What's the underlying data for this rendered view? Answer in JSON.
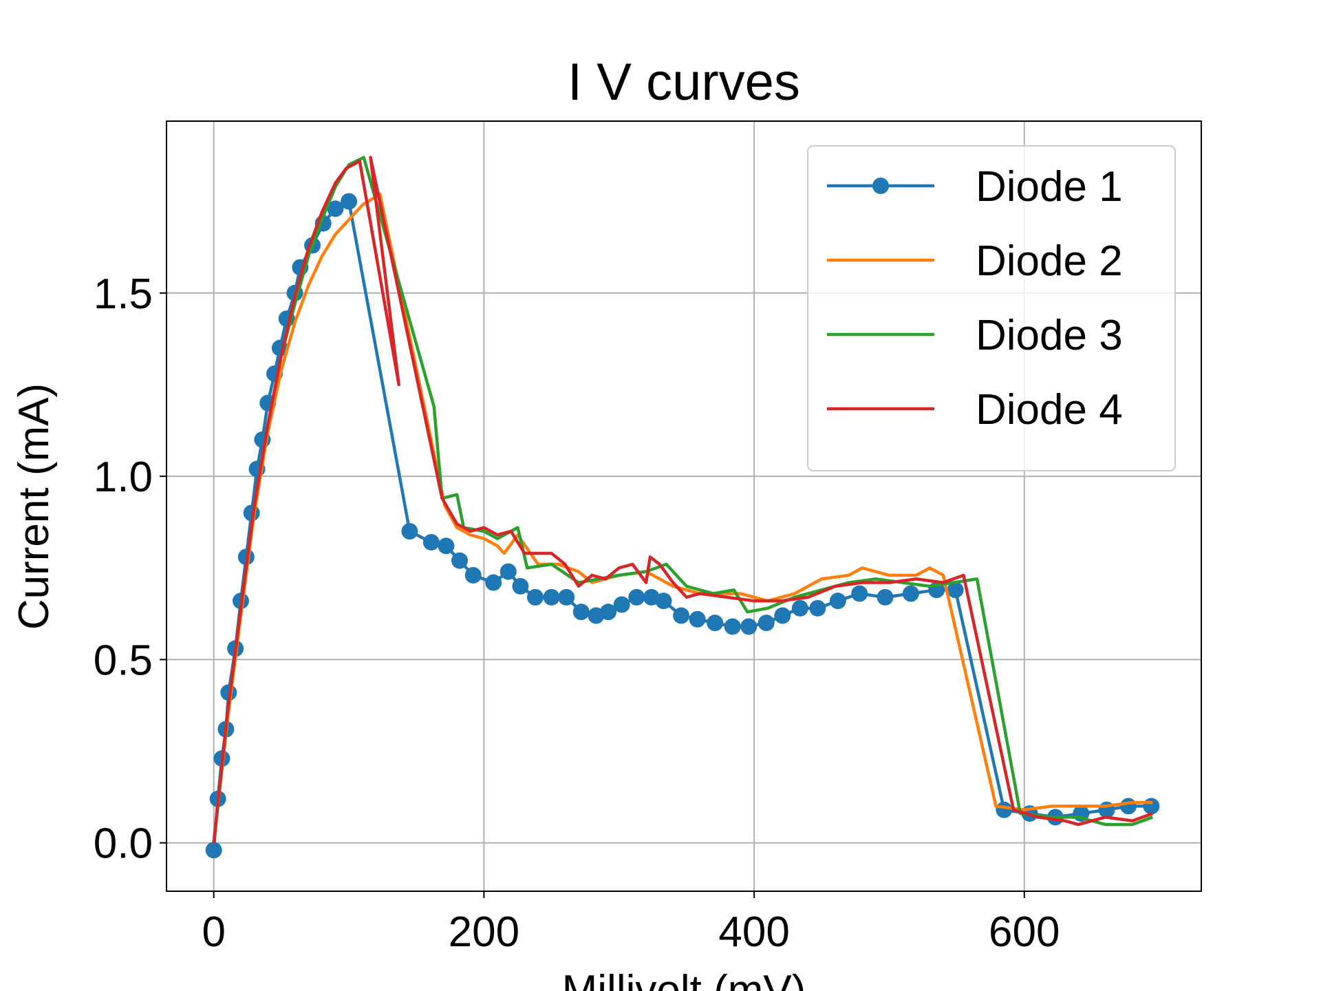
{
  "chart_data": {
    "type": "line",
    "title": "I V curves",
    "x_label": "Millivolt (mV)",
    "y_label": "Current (mA)",
    "xlim": [
      -35,
      731
    ],
    "ylim": [
      -0.132,
      1.969
    ],
    "xticks": [
      0,
      200,
      400,
      600
    ],
    "yticks": [
      {
        "value": 0,
        "label": "0.0"
      },
      0.5,
      {
        "value": 1,
        "label": "1.0"
      },
      1.5
    ],
    "grid": true,
    "legend": "upper right",
    "series": [
      {
        "name": "Diode 1",
        "color": "#1f77b4",
        "marker": "o",
        "x": [
          0,
          3,
          6,
          9,
          11,
          16,
          20,
          24,
          28,
          32,
          36,
          40,
          45,
          49,
          54,
          60,
          64,
          73,
          81,
          90,
          100,
          145,
          161,
          172,
          182,
          192,
          207,
          218,
          227,
          238,
          250,
          261,
          272,
          283,
          292,
          302,
          313,
          324,
          333,
          346,
          358,
          371,
          384,
          396,
          409,
          421,
          434,
          447,
          462,
          478,
          497,
          516,
          535,
          549,
          585,
          604,
          623,
          642,
          661,
          677,
          694
        ],
        "values": [
          -0.02,
          0.12,
          0.23,
          0.31,
          0.41,
          0.53,
          0.66,
          0.78,
          0.9,
          1.02,
          1.1,
          1.2,
          1.28,
          1.35,
          1.43,
          1.5,
          1.57,
          1.63,
          1.69,
          1.73,
          1.75,
          0.85,
          0.82,
          0.81,
          0.77,
          0.73,
          0.71,
          0.74,
          0.7,
          0.67,
          0.67,
          0.67,
          0.63,
          0.62,
          0.63,
          0.65,
          0.67,
          0.67,
          0.66,
          0.62,
          0.61,
          0.6,
          0.59,
          0.59,
          0.6,
          0.62,
          0.64,
          0.64,
          0.66,
          0.68,
          0.67,
          0.68,
          0.69,
          0.69,
          0.09,
          0.08,
          0.07,
          0.08,
          0.09,
          0.1,
          0.1
        ]
      },
      {
        "name": "Diode 2",
        "color": "#ff7f0e",
        "x": [
          0,
          10,
          20,
          30,
          40,
          50,
          60,
          70,
          80,
          90,
          100,
          110,
          123,
          171,
          180,
          190,
          200,
          210,
          215,
          225,
          240,
          255,
          270,
          280,
          300,
          320,
          340,
          360,
          375,
          390,
          410,
          430,
          450,
          470,
          480,
          500,
          520,
          530,
          540,
          579,
          600,
          620,
          640,
          660,
          680,
          695
        ],
        "values": [
          0,
          0.33,
          0.62,
          0.9,
          1.12,
          1.29,
          1.42,
          1.52,
          1.6,
          1.66,
          1.7,
          1.74,
          1.77,
          0.92,
          0.86,
          0.84,
          0.83,
          0.81,
          0.79,
          0.84,
          0.76,
          0.76,
          0.74,
          0.71,
          0.73,
          0.74,
          0.7,
          0.68,
          0.68,
          0.68,
          0.66,
          0.68,
          0.72,
          0.73,
          0.75,
          0.73,
          0.73,
          0.75,
          0.73,
          0.1,
          0.09,
          0.1,
          0.1,
          0.1,
          0.11,
          0.11
        ]
      },
      {
        "name": "Diode 3",
        "color": "#2ca02c",
        "x": [
          0,
          10,
          20,
          30,
          40,
          50,
          60,
          70,
          80,
          90,
          100,
          111,
          163,
          169,
          180,
          185,
          200,
          210,
          225,
          232,
          250,
          270,
          300,
          320,
          335,
          350,
          370,
          385,
          395,
          410,
          430,
          450,
          470,
          490,
          510,
          530,
          565,
          597,
          620,
          640,
          660,
          680,
          695
        ],
        "values": [
          0,
          0.35,
          0.64,
          0.92,
          1.14,
          1.33,
          1.47,
          1.6,
          1.7,
          1.79,
          1.85,
          1.87,
          1.19,
          0.94,
          0.95,
          0.86,
          0.85,
          0.83,
          0.86,
          0.75,
          0.76,
          0.71,
          0.73,
          0.74,
          0.76,
          0.7,
          0.68,
          0.69,
          0.63,
          0.64,
          0.67,
          0.69,
          0.71,
          0.72,
          0.71,
          0.7,
          0.72,
          0.08,
          0.07,
          0.07,
          0.05,
          0.05,
          0.07
        ]
      },
      {
        "name": "Diode 4",
        "color": "#d62728",
        "x": [
          0,
          10,
          20,
          30,
          40,
          50,
          60,
          70,
          80,
          90,
          98,
          108,
          137,
          116,
          169,
          180,
          190,
          200,
          210,
          220,
          230,
          250,
          260,
          270,
          280,
          290,
          300,
          310,
          320,
          323,
          330,
          340,
          350,
          360,
          380,
          400,
          420,
          440,
          460,
          480,
          500,
          520,
          540,
          555,
          592,
          610,
          630,
          640,
          660,
          680,
          695
        ],
        "values": [
          0,
          0.35,
          0.64,
          0.92,
          1.14,
          1.33,
          1.49,
          1.62,
          1.72,
          1.8,
          1.84,
          1.86,
          1.25,
          1.87,
          0.94,
          0.87,
          0.85,
          0.86,
          0.84,
          0.85,
          0.79,
          0.79,
          0.76,
          0.7,
          0.73,
          0.72,
          0.75,
          0.76,
          0.71,
          0.78,
          0.76,
          0.71,
          0.67,
          0.68,
          0.67,
          0.66,
          0.66,
          0.67,
          0.7,
          0.71,
          0.71,
          0.72,
          0.71,
          0.73,
          0.09,
          0.07,
          0.06,
          0.05,
          0.07,
          0.06,
          0.08
        ]
      }
    ]
  }
}
